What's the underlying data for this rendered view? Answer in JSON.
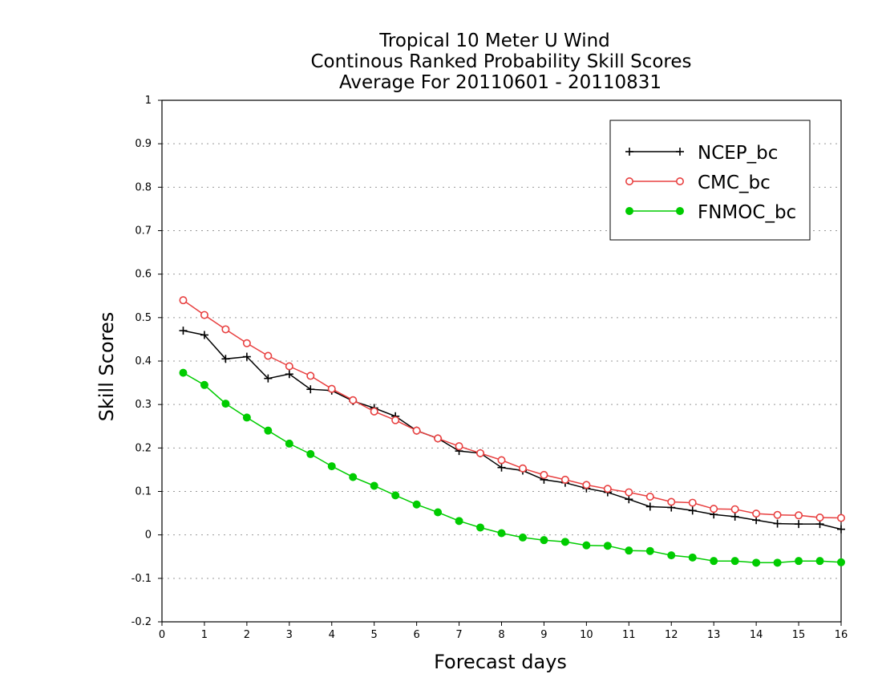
{
  "chart_data": {
    "type": "line",
    "title_lines": [
      "Tropical 10 Meter U Wind",
      "Continous Ranked Probability Skill Scores",
      "Average For 20110601 - 20110831"
    ],
    "xlabel": "Forecast days",
    "ylabel": "Skill Scores",
    "xlim": [
      0,
      16
    ],
    "ylim": [
      -0.2,
      1
    ],
    "x_ticks": [
      "0",
      "1",
      "2",
      "3",
      "4",
      "5",
      "6",
      "7",
      "8",
      "9",
      "10",
      "11",
      "12",
      "13",
      "14",
      "15",
      "16"
    ],
    "y_ticks": [
      "-0.2",
      "-0.1",
      "0",
      "0.1",
      "0.2",
      "0.3",
      "0.4",
      "0.5",
      "0.6",
      "0.7",
      "0.8",
      "0.9",
      "1"
    ],
    "grid": "horizontal dotted",
    "legend_position": "top-right",
    "x": [
      0.5,
      1,
      1.5,
      2,
      2.5,
      3,
      3.5,
      4,
      4.5,
      5,
      5.5,
      6,
      6.5,
      7,
      7.5,
      8,
      8.5,
      9,
      9.5,
      10,
      10.5,
      11,
      11.5,
      12,
      12.5,
      13,
      13.5,
      14,
      14.5,
      15,
      15.5,
      16
    ],
    "series": [
      {
        "name": "NCEP_bc",
        "color": "#000000",
        "marker": "plus",
        "values": [
          0.47,
          0.46,
          0.405,
          0.41,
          0.36,
          0.37,
          0.335,
          0.332,
          0.308,
          0.292,
          0.273,
          0.24,
          0.222,
          0.193,
          0.188,
          0.155,
          0.148,
          0.127,
          0.12,
          0.107,
          0.098,
          0.082,
          0.065,
          0.063,
          0.056,
          0.047,
          0.042,
          0.034,
          0.026,
          0.025,
          0.025,
          0.013
        ]
      },
      {
        "name": "CMC_bc",
        "color": "#e84040",
        "marker": "open-circle",
        "values": [
          0.54,
          0.506,
          0.473,
          0.441,
          0.412,
          0.388,
          0.366,
          0.336,
          0.31,
          0.284,
          0.264,
          0.24,
          0.222,
          0.204,
          0.188,
          0.172,
          0.153,
          0.138,
          0.127,
          0.115,
          0.106,
          0.098,
          0.088,
          0.076,
          0.074,
          0.06,
          0.059,
          0.049,
          0.046,
          0.045,
          0.04,
          0.039
        ]
      },
      {
        "name": "FNMOC_bc",
        "color": "#00cc00",
        "marker": "filled-circle",
        "values": [
          0.373,
          0.345,
          0.302,
          0.27,
          0.24,
          0.21,
          0.186,
          0.158,
          0.133,
          0.113,
          0.091,
          0.07,
          0.052,
          0.032,
          0.017,
          0.004,
          -0.006,
          -0.012,
          -0.016,
          -0.024,
          -0.025,
          -0.036,
          -0.037,
          -0.047,
          -0.052,
          -0.06,
          -0.06,
          -0.064,
          -0.064,
          -0.06,
          -0.06,
          -0.063
        ]
      }
    ]
  }
}
